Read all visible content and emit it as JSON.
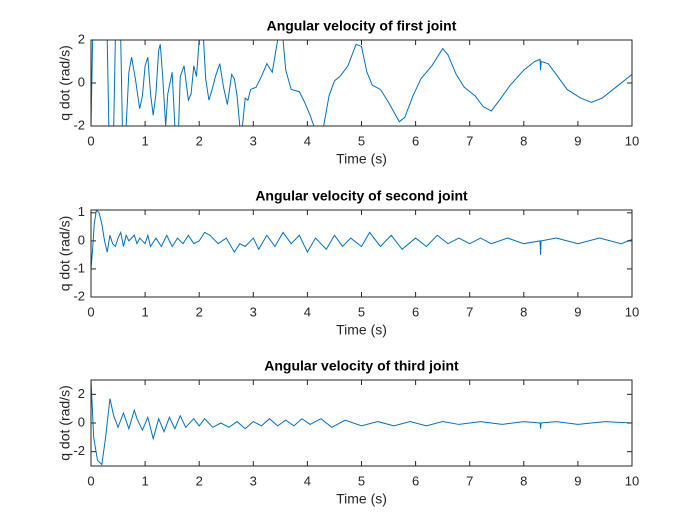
{
  "chart_data": [
    {
      "type": "line",
      "title": "Angular velocity of first joint",
      "xlabel": "Time (s)",
      "ylabel": "q dot (rad/s)",
      "xlim": [
        0,
        10
      ],
      "xticks": [
        0,
        1,
        2,
        3,
        4,
        5,
        6,
        7,
        8,
        9,
        10
      ],
      "ylim": [
        -2,
        2
      ],
      "yticks": [
        -2,
        0,
        2
      ],
      "color": "#0072bd",
      "x": [
        0,
        0.03,
        0.3,
        0.33,
        0.42,
        0.45,
        0.55,
        0.58,
        0.65,
        0.7,
        0.75,
        0.82,
        0.9,
        0.95,
        1.0,
        1.05,
        1.1,
        1.15,
        1.2,
        1.25,
        1.28,
        1.32,
        1.38,
        1.42,
        1.5,
        1.55,
        1.62,
        1.65,
        1.72,
        1.8,
        1.85,
        1.9,
        1.95,
        2.0,
        2.08,
        2.12,
        2.18,
        2.25,
        2.3,
        2.38,
        2.45,
        2.52,
        2.55,
        2.6,
        2.65,
        2.7,
        2.75,
        2.8,
        2.85,
        2.9,
        2.95,
        3.05,
        3.15,
        3.25,
        3.35,
        3.45,
        3.55,
        3.6,
        3.7,
        3.85,
        3.95,
        4.05,
        4.12,
        4.3,
        4.4,
        4.5,
        4.6,
        4.75,
        4.9,
        5.0,
        5.1,
        5.2,
        5.35,
        5.5,
        5.7,
        5.8,
        5.95,
        6.1,
        6.3,
        6.5,
        6.6,
        6.75,
        6.9,
        7.1,
        7.25,
        7.4,
        7.55,
        7.75,
        8.0,
        8.2,
        8.3,
        8.31,
        8.32,
        8.45,
        8.6,
        8.8,
        9.05,
        9.25,
        9.45,
        9.7,
        10
      ],
      "values": [
        -2,
        2,
        2,
        -2,
        -2,
        2,
        2,
        -2,
        -2,
        0.5,
        1.2,
        0.2,
        -1.2,
        -0.6,
        0.8,
        1.2,
        -0.5,
        -1.5,
        -0.5,
        1.5,
        1.8,
        0.5,
        -2,
        -0.5,
        0.5,
        -2,
        -2,
        0.3,
        0.8,
        -0.8,
        -0.5,
        0.8,
        0.3,
        2,
        2,
        0.2,
        -0.8,
        -0.2,
        0.3,
        0.9,
        -0.2,
        -1.0,
        -0.5,
        0.4,
        0.2,
        -0.6,
        -2,
        -2,
        -0.7,
        -0.8,
        -0.3,
        -0.2,
        0.3,
        0.9,
        0.5,
        2,
        2,
        0.6,
        -0.3,
        -0.4,
        -0.9,
        -1.5,
        -2,
        -2,
        -0.6,
        0.1,
        0.3,
        0.8,
        1.8,
        1.7,
        0.5,
        -0.1,
        -0.3,
        -0.9,
        -1.8,
        -1.6,
        -0.6,
        0.2,
        0.8,
        1.6,
        1.3,
        0.4,
        -0.2,
        -0.6,
        -1.1,
        -1.3,
        -0.8,
        -0.1,
        0.6,
        1.0,
        1.1,
        0.6,
        1.0,
        0.9,
        0.4,
        -0.3,
        -0.7,
        -0.9,
        -0.7,
        -0.2,
        0.4
      ]
    },
    {
      "type": "line",
      "title": "Angular velocity of second joint",
      "xlabel": "Time (s)",
      "ylabel": "q dot (rad/s)",
      "xlim": [
        0,
        10
      ],
      "xticks": [
        0,
        1,
        2,
        3,
        4,
        5,
        6,
        7,
        8,
        9,
        10
      ],
      "ylim": [
        -2,
        1.1
      ],
      "yticks": [
        -2,
        -1,
        0,
        1
      ],
      "color": "#0072bd",
      "x": [
        0,
        0.03,
        0.06,
        0.1,
        0.15,
        0.2,
        0.25,
        0.3,
        0.35,
        0.4,
        0.45,
        0.5,
        0.55,
        0.6,
        0.65,
        0.7,
        0.8,
        0.85,
        0.9,
        1.0,
        1.05,
        1.1,
        1.2,
        1.3,
        1.4,
        1.5,
        1.6,
        1.7,
        1.8,
        1.9,
        2.0,
        2.1,
        2.2,
        2.35,
        2.5,
        2.65,
        2.75,
        2.85,
        3.0,
        3.1,
        3.25,
        3.4,
        3.55,
        3.7,
        3.85,
        4.0,
        4.15,
        4.35,
        4.5,
        4.65,
        4.8,
        5.0,
        5.15,
        5.35,
        5.55,
        5.75,
        6.0,
        6.2,
        6.4,
        6.6,
        6.8,
        7.0,
        7.2,
        7.4,
        7.7,
        8.0,
        8.3,
        8.31,
        8.32,
        8.6,
        9.0,
        9.4,
        9.8,
        10
      ],
      "values": [
        -1.0,
        -0.3,
        0.6,
        1.1,
        1.0,
        0.6,
        0,
        -0.4,
        0.2,
        -0.1,
        -0.2,
        0.1,
        0.3,
        -0.2,
        0.2,
        0.0,
        0.2,
        -0.1,
        0.1,
        -0.1,
        0.2,
        -0.2,
        0.1,
        -0.2,
        0.2,
        -0.2,
        0.1,
        -0.1,
        0.2,
        -0.1,
        0.0,
        0.3,
        0.2,
        -0.1,
        0.1,
        -0.4,
        -0.1,
        -0.2,
        0.1,
        -0.3,
        0.2,
        -0.2,
        0.3,
        -0.1,
        0.2,
        -0.4,
        0.1,
        -0.3,
        0.2,
        -0.2,
        0.1,
        -0.2,
        0.3,
        -0.2,
        0.2,
        -0.3,
        0.1,
        -0.2,
        0.2,
        -0.1,
        0.1,
        -0.1,
        0.1,
        -0.1,
        0.1,
        -0.1,
        0.0,
        -0.5,
        0.0,
        0.1,
        -0.1,
        0.1,
        -0.1,
        0.05
      ]
    },
    {
      "type": "line",
      "title": "Angular velocity of third joint",
      "xlabel": "Time (s)",
      "ylabel": "q dot (rad/s)",
      "xlim": [
        0,
        10
      ],
      "xticks": [
        0,
        1,
        2,
        3,
        4,
        5,
        6,
        7,
        8,
        9,
        10
      ],
      "ylim": [
        -3,
        3
      ],
      "yticks": [
        -2,
        0,
        2
      ],
      "color": "#0072bd",
      "x": [
        0,
        0.05,
        0.12,
        0.2,
        0.27,
        0.35,
        0.42,
        0.5,
        0.55,
        0.6,
        0.7,
        0.8,
        0.85,
        0.95,
        1.05,
        1.15,
        1.25,
        1.35,
        1.45,
        1.55,
        1.65,
        1.75,
        1.9,
        2.0,
        2.1,
        2.25,
        2.4,
        2.55,
        2.7,
        2.85,
        3.0,
        3.15,
        3.3,
        3.45,
        3.6,
        3.75,
        3.9,
        4.05,
        4.25,
        4.45,
        4.7,
        5.0,
        5.3,
        5.6,
        5.9,
        6.2,
        6.5,
        6.8,
        7.2,
        7.6,
        8.0,
        8.3,
        8.31,
        8.32,
        8.6,
        9.0,
        9.5,
        10
      ],
      "values": [
        3,
        -1,
        -2.6,
        -2.9,
        -1,
        1.7,
        0.5,
        -0.3,
        0.2,
        0.7,
        -0.4,
        0.9,
        0.3,
        -0.5,
        0.4,
        -1.1,
        0.3,
        -0.6,
        0.4,
        -0.4,
        0.5,
        -0.3,
        0.3,
        -0.2,
        0.3,
        -0.3,
        0.0,
        -0.3,
        0.1,
        -0.4,
        0.1,
        -0.2,
        0.3,
        -0.2,
        0.2,
        -0.2,
        0.3,
        -0.1,
        0.3,
        -0.3,
        0.2,
        -0.2,
        0.1,
        -0.2,
        0.1,
        -0.2,
        0.1,
        -0.1,
        0.1,
        -0.1,
        0.1,
        0.0,
        -0.4,
        0.0,
        0.1,
        -0.1,
        0.1,
        0.0
      ]
    }
  ]
}
